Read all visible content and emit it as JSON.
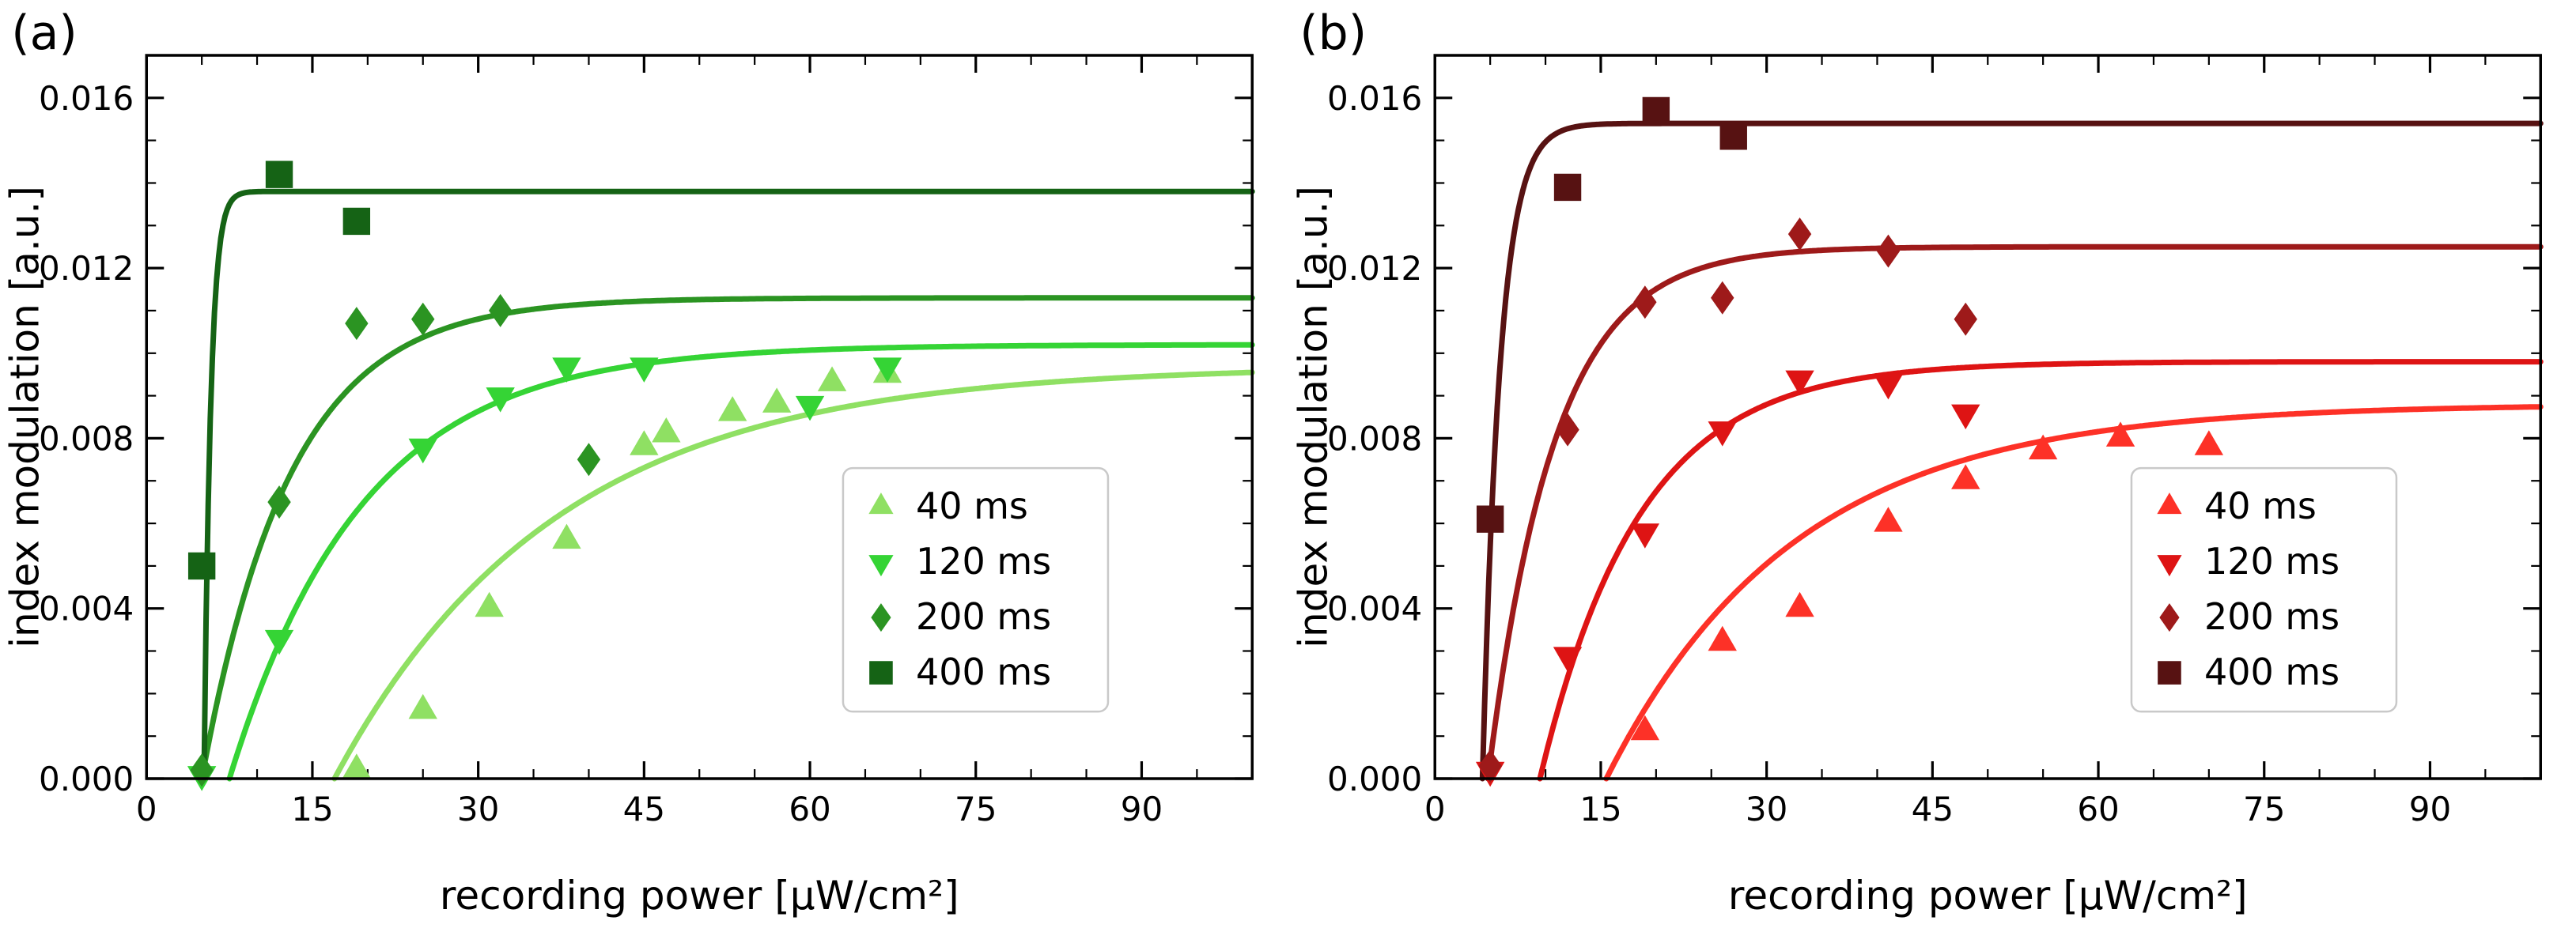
{
  "figure": {
    "background": "#ffffff",
    "panel_labels": [
      "(a)",
      "(b)"
    ]
  },
  "chart_data": [
    {
      "type": "scatter",
      "panel_label": "(a)",
      "xlabel": "recording power [µW/cm²]",
      "ylabel": "index modulation [a.u.]",
      "xlim": [
        0,
        100
      ],
      "ylim": [
        0,
        0.017
      ],
      "grid": false,
      "xticks": {
        "values": [
          0,
          15,
          30,
          45,
          60,
          75,
          90
        ],
        "labels": [
          "0",
          "15",
          "30",
          "45",
          "60",
          "75",
          "90"
        ],
        "minor_step": 5
      },
      "yticks": {
        "values": [
          0,
          0.004,
          0.008,
          0.012,
          0.016
        ],
        "labels": [
          "0.000",
          "0.004",
          "0.008",
          "0.012",
          "0.016"
        ],
        "minor_step": 0.001
      },
      "legend": {
        "position": "inset lower right",
        "x_data": 63,
        "y_data_top": 0.0073
      },
      "series": [
        {
          "name": "40 ms",
          "marker": "triangle-up",
          "color": "#8fe063",
          "fit_curve": {
            "model": "A*(1-exp(-(x-x0)/tau))",
            "A": 0.0097,
            "x0": 17,
            "tau": 20
          },
          "points": [
            [
              19,
              0.0002
            ],
            [
              25,
              0.0016
            ],
            [
              31,
              0.004
            ],
            [
              38,
              0.0056
            ],
            [
              45,
              0.0078
            ],
            [
              47,
              0.0081
            ],
            [
              53,
              0.0086
            ],
            [
              57,
              0.0088
            ],
            [
              62,
              0.0093
            ],
            [
              67,
              0.0095
            ]
          ]
        },
        {
          "name": "120 ms",
          "marker": "triangle-down",
          "color": "#35d435",
          "fit_curve": {
            "model": "A*(1-exp(-(x-x0)/tau))",
            "A": 0.0102,
            "x0": 7.5,
            "tau": 12
          },
          "points": [
            [
              5,
              0.0001
            ],
            [
              12,
              0.0033
            ],
            [
              25,
              0.0078
            ],
            [
              32,
              0.009
            ],
            [
              38,
              0.0097
            ],
            [
              45,
              0.0097
            ],
            [
              60,
              0.0088
            ],
            [
              67,
              0.0097
            ]
          ]
        },
        {
          "name": "200 ms",
          "marker": "diamond",
          "color": "#2b9422",
          "fit_curve": {
            "model": "A*(1-exp(-(x-x0)/tau))",
            "A": 0.0113,
            "x0": 5,
            "tau": 8
          },
          "points": [
            [
              5,
              0.0002
            ],
            [
              12,
              0.0065
            ],
            [
              19,
              0.0107
            ],
            [
              25,
              0.0108
            ],
            [
              32,
              0.011
            ],
            [
              40,
              0.0075
            ]
          ]
        },
        {
          "name": "400 ms",
          "marker": "square",
          "color": "#156315",
          "fit_curve": {
            "model": "A*(1-exp(-(x-x0)/tau))",
            "A": 0.0138,
            "x0": 5.2,
            "tau": 0.6
          },
          "points": [
            [
              5,
              0.005
            ],
            [
              12,
              0.0142
            ],
            [
              19,
              0.0131
            ]
          ]
        }
      ]
    },
    {
      "type": "scatter",
      "panel_label": "(b)",
      "xlabel": "recording power [µW/cm²]",
      "ylabel": "index modulation [a.u.]",
      "xlim": [
        0,
        100
      ],
      "ylim": [
        0,
        0.017
      ],
      "grid": false,
      "xticks": {
        "values": [
          0,
          15,
          30,
          45,
          60,
          75,
          90
        ],
        "labels": [
          "0",
          "15",
          "30",
          "45",
          "60",
          "75",
          "90"
        ],
        "minor_step": 5
      },
      "yticks": {
        "values": [
          0,
          0.004,
          0.008,
          0.012,
          0.016
        ],
        "labels": [
          "0.000",
          "0.004",
          "0.008",
          "0.012",
          "0.016"
        ],
        "minor_step": 0.001
      },
      "legend": {
        "position": "inset lower right",
        "x_data": 63,
        "y_data_top": 0.0073
      },
      "series": [
        {
          "name": "40 ms",
          "marker": "triangle-up",
          "color": "#fd3127",
          "fit_curve": {
            "model": "A*(1-exp(-(x-x0)/tau))",
            "A": 0.0088,
            "x0": 15.5,
            "tau": 17
          },
          "points": [
            [
              19,
              0.0011
            ],
            [
              26,
              0.0032
            ],
            [
              33,
              0.004
            ],
            [
              41,
              0.006
            ],
            [
              48,
              0.007
            ],
            [
              55,
              0.0077
            ],
            [
              62,
              0.008
            ],
            [
              70,
              0.0078
            ]
          ]
        },
        {
          "name": "120 ms",
          "marker": "triangle-down",
          "color": "#de1414",
          "fit_curve": {
            "model": "A*(1-exp(-(x-x0)/tau))",
            "A": 0.0098,
            "x0": 9.5,
            "tau": 9
          },
          "points": [
            [
              5,
              0.0002
            ],
            [
              12,
              0.0029
            ],
            [
              19,
              0.0058
            ],
            [
              26,
              0.0082
            ],
            [
              33,
              0.0094
            ],
            [
              41,
              0.0093
            ],
            [
              48,
              0.0086
            ]
          ]
        },
        {
          "name": "200 ms",
          "marker": "diamond",
          "color": "#9e1a1a",
          "fit_curve": {
            "model": "A*(1-exp(-(x-x0)/tau))",
            "A": 0.0125,
            "x0": 4.8,
            "tau": 6
          },
          "points": [
            [
              5,
              0.0003
            ],
            [
              12,
              0.0082
            ],
            [
              19,
              0.0112
            ],
            [
              26,
              0.0113
            ],
            [
              33,
              0.0128
            ],
            [
              41,
              0.0124
            ],
            [
              48,
              0.0108
            ]
          ]
        },
        {
          "name": "400 ms",
          "marker": "square",
          "color": "#571212",
          "fit_curve": {
            "model": "A*(1-exp(-(x-x0)/tau))",
            "A": 0.0154,
            "x0": 4.3,
            "tau": 1.6
          },
          "points": [
            [
              5,
              0.0061
            ],
            [
              12,
              0.0139
            ],
            [
              20,
              0.0157
            ],
            [
              27,
              0.0151
            ]
          ]
        }
      ]
    }
  ]
}
